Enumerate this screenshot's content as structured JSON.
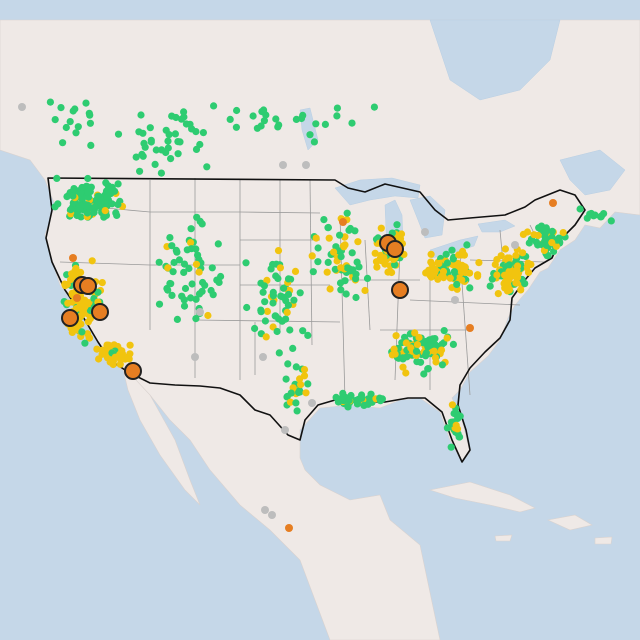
{
  "legend_categories": [
    {
      "id": "good",
      "color": "#2ecc71"
    },
    {
      "id": "moderate",
      "color": "#f1c40f"
    },
    {
      "id": "unhealthy_sensitive",
      "color": "#e67e22"
    },
    {
      "id": "no_data",
      "color": "#bdbdbd"
    }
  ],
  "large_marker_color": "#e67e22",
  "station_counts_estimate": {
    "good": 620,
    "moderate": 360,
    "unhealthy_sensitive": 8,
    "no_data": 20
  }
}
